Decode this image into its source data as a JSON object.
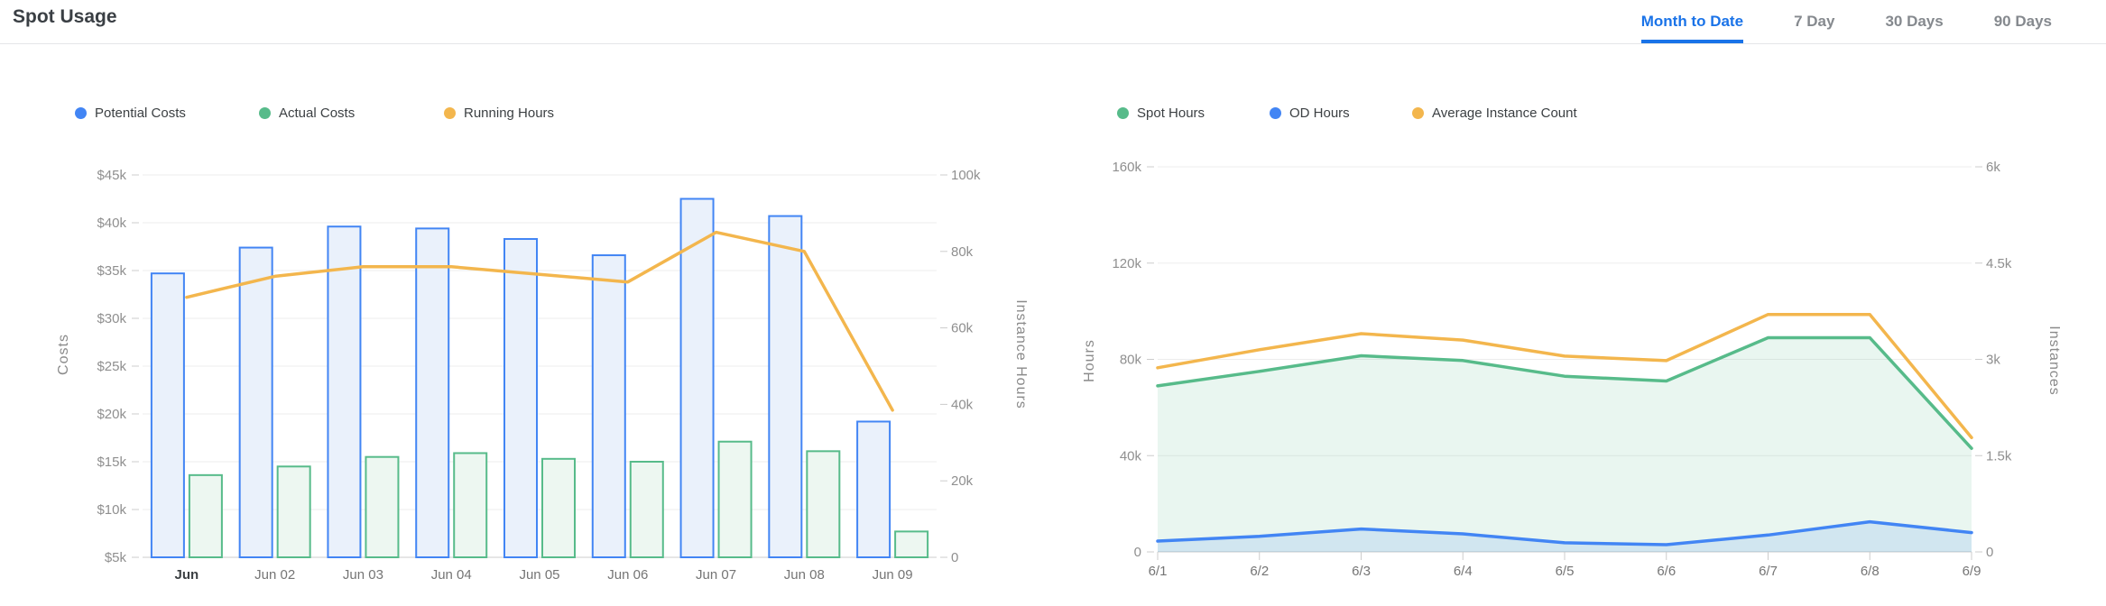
{
  "header": {
    "title": "Spot Usage",
    "tabs": [
      {
        "label": "Month to Date",
        "active": true
      },
      {
        "label": "7 Day",
        "active": false
      },
      {
        "label": "30 Days",
        "active": false
      },
      {
        "label": "90 Days",
        "active": false
      }
    ]
  },
  "colors": {
    "accent": "#1A73E8",
    "blue": "#4285F4",
    "green": "#57BB8A",
    "orange": "#F3B64D",
    "blue_bar_fill": "#EAF1FB",
    "green_bar_fill": "#EDF7F1",
    "blue_area_fill": "rgba(66,133,244,0.14)",
    "green_area_fill": "rgba(87,187,138,0.13)",
    "gridline": "#EDEDED",
    "axis_line": "#CCCCCC",
    "tick_text": "#8F8F8F",
    "axis_title_text": "#8A8A8A",
    "x_label_text": "#757575",
    "x_label_emphasis": "#3C4043"
  },
  "chart_data": [
    {
      "type": "bar",
      "title": "Costs and Running Hours by day",
      "categories": [
        "Jun",
        "Jun 02",
        "Jun 03",
        "Jun 04",
        "Jun 05",
        "Jun 06",
        "Jun 07",
        "Jun 08",
        "Jun 09"
      ],
      "series": [
        {
          "name": "Potential Costs",
          "type": "bar",
          "axis": "left",
          "color": "#4285F4",
          "fill": "#EAF1FB",
          "values": [
            34700,
            37400,
            39600,
            39400,
            38300,
            36600,
            42500,
            40700,
            19200
          ]
        },
        {
          "name": "Actual Costs",
          "type": "bar",
          "axis": "left",
          "color": "#57BB8A",
          "fill": "#EDF7F1",
          "values": [
            13600,
            14500,
            15500,
            15900,
            15300,
            15000,
            17100,
            16100,
            7700
          ]
        },
        {
          "name": "Running Hours",
          "type": "line",
          "axis": "right",
          "color": "#F3B64D",
          "values": [
            68000,
            73500,
            76000,
            76000,
            74000,
            72000,
            85000,
            80000,
            38500
          ]
        }
      ],
      "y_left": {
        "title": "Costs",
        "ticks": [
          "$45k",
          "$40k",
          "$35k",
          "$30k",
          "$25k",
          "$20k",
          "$15k",
          "$10k",
          "$5k"
        ],
        "min": 5000,
        "max": 45000
      },
      "y_right": {
        "title": "Instance Hours",
        "ticks": [
          "100k",
          "80k",
          "60k",
          "40k",
          "20k",
          "0"
        ],
        "min": 0,
        "max": 100000
      },
      "legend_position": "top",
      "grid": true
    },
    {
      "type": "area",
      "title": "Spot and On-Demand hours with average instance count by day",
      "categories": [
        "6/1",
        "6/2",
        "6/3",
        "6/4",
        "6/5",
        "6/6",
        "6/7",
        "6/8",
        "6/9"
      ],
      "series": [
        {
          "name": "Spot Hours",
          "type": "area",
          "axis": "left",
          "color": "#57BB8A",
          "fill": "rgba(87,187,138,0.13)",
          "values": [
            69000,
            75000,
            81500,
            79500,
            73000,
            71000,
            89000,
            89000,
            43000
          ]
        },
        {
          "name": "OD Hours",
          "type": "area",
          "axis": "left",
          "color": "#4285F4",
          "fill": "rgba(66,133,244,0.14)",
          "values": [
            4500,
            6500,
            9500,
            7500,
            3800,
            3000,
            7000,
            12500,
            8000
          ]
        },
        {
          "name": "Average Instance Count",
          "type": "line",
          "axis": "right",
          "color": "#F3B64D",
          "values": [
            2870,
            3150,
            3400,
            3300,
            3050,
            2980,
            3700,
            3700,
            1780
          ]
        }
      ],
      "y_left": {
        "title": "Hours",
        "ticks": [
          "160k",
          "120k",
          "80k",
          "40k",
          "0"
        ],
        "min": 0,
        "max": 160000
      },
      "y_right": {
        "title": "Instances",
        "ticks": [
          "6k",
          "4.5k",
          "3k",
          "1.5k",
          "0"
        ],
        "min": 0,
        "max": 6000
      },
      "legend_position": "top",
      "grid": true
    }
  ]
}
